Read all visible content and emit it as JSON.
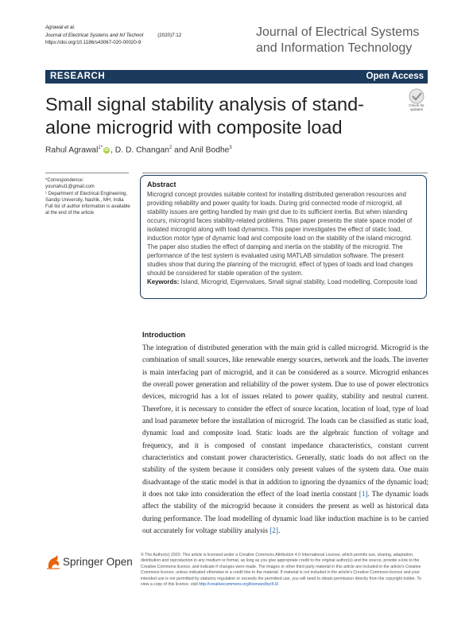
{
  "header": {
    "author_line": "Agrawal et al.",
    "journal_short": "Journal of Electrical Systems and Inf Technol",
    "year_vol": "(2020)7:12",
    "doi": "https://doi.org/10.1186/s43067-020-00020-9",
    "journal_name": "Journal of Electrical Systems and Information Technology"
  },
  "banner": {
    "section": "RESEARCH",
    "access": "Open Access"
  },
  "title": "Small signal stability analysis of stand-alone microgrid with composite load",
  "check_updates": {
    "line1": "Check for",
    "line2": "updates"
  },
  "authors": {
    "a1": "Rahul Agrawal",
    "a1_sup": "1*",
    "orcid": "iD",
    "a2": ", D. D. Changan",
    "a2_sup": "2",
    "a3": " and Anil Bodhe",
    "a3_sup": "3"
  },
  "correspondence": {
    "label": "*Correspondence:",
    "email": "yourrahul1@gmail.com",
    "affiliation": "¹ Department of Electrical Engineering, Sandip University, Nashik., MH, India",
    "note": "Full list of author information is available at the end of the article"
  },
  "abstract": {
    "heading": "Abstract",
    "text": "Microgrid concept provides suitable context for installing distributed generation resources and providing reliability and power quality for loads. During grid connected mode of microgrid, all stability issues are getting handled by main grid due to its sufficient inertia. But when islanding occurs, microgrid faces stability-related problems. This paper presents the state space model of isolated microgrid along with load dynamics. This paper investigates the effect of static load, induction motor type of dynamic load and composite load on the stability of the island microgrid. The paper also studies the effect of damping and inertia on the stability of the microgrid. The performance of the test system is evaluated using MATLAB simulation software. The present studies show that during the planning of the microgrid, effect of types of loads and load changes should be considered for stable operation of the system.",
    "keywords_label": "Keywords:",
    "keywords": "Island, Microgrid, Eigenvalues, Small signal stability, Load modelling, Composite load"
  },
  "intro": {
    "heading": "Introduction",
    "p1": "The integration of distributed generation with the main grid is called microgrid. Microgrid is the combination of small sources, like renewable energy sources, network and the loads. The inverter is main interfacing part of microgrid, and it can be considered as a source. Microgrid enhances the overall power generation and reliability of the power system. Due to use of power electronics devices, microgrid has a lot of issues related to power quality, stability and neutral current. Therefore, it is necessary to consider the effect of source location, location of load, type of load and load parameter before the installation of microgrid. The loads can be classified as static load, dynamic load and composite load. Static loads are the algebraic function of voltage and frequency, and it is composed of constant impedance characteristics, constant current characteristics and constant power characteristics. Generally, static loads do not affect on the stability of the system because it considers only present values of the system data. One main disadvantage of the static model is that in addition to ignoring the dynamics of the dynamic load; it does not take into consideration the effect of the load inertia constant ",
    "cite1": "[1]",
    "p2": ". The dynamic loads affect the stability of the microgrid because it considers the present as well as historical data during performance. The load modelling of dynamic load like induction machine is to be carried out accurately for voltage stability analysis ",
    "cite2": "[2]",
    "p3": "."
  },
  "footer": {
    "publisher": "Springer Open",
    "license_text": "© The Author(s) 2020. This article is licensed under a Creative Commons Attribution 4.0 International License, which permits use, sharing, adaptation, distribution and reproduction in any medium or format, as long as you give appropriate credit to the original author(s) and the source, provide a link to the Creative Commons licence, and indicate if changes were made. The images or other third party material in this article are included in the article's Creative Commons licence, unless indicated otherwise in a credit line to the material. If material is not included in the article's Creative Commons licence and your intended use is not permitted by statutory regulation or exceeds the permitted use, you will need to obtain permission directly from the copyright holder. To view a copy of this licence, visit ",
    "license_link": "http://creativecommons.org/licenses/by/4.0/",
    "license_end": "."
  },
  "colors": {
    "banner": "#1b3a5c",
    "link": "#1d5aa8",
    "orcid": "#a6ce39",
    "springer": "#e8630a"
  }
}
